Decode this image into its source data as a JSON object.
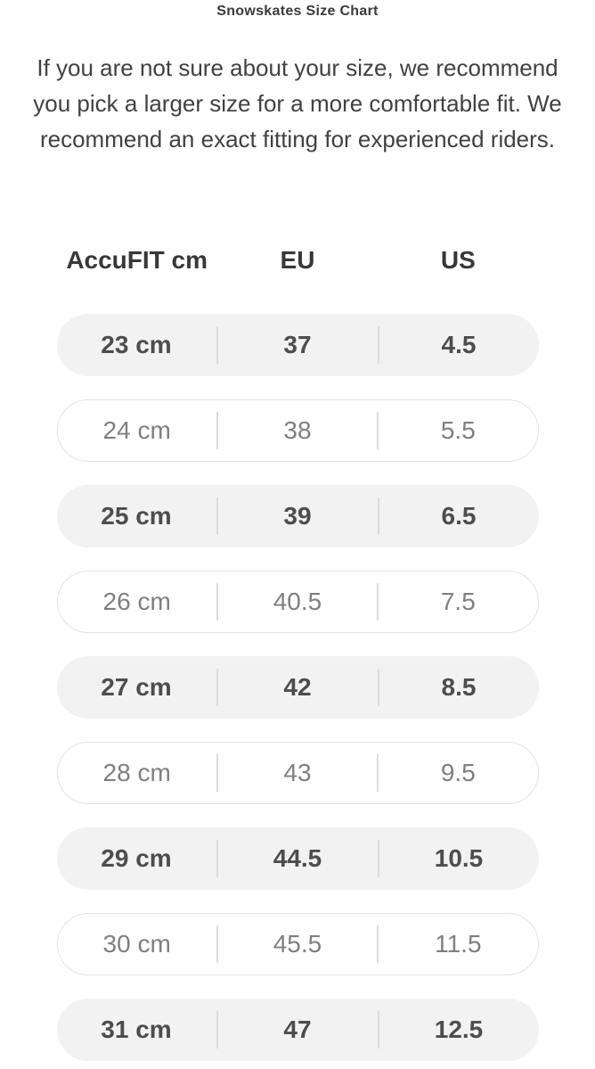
{
  "title": "Snowskates Size Chart",
  "intro": "If you are not sure about your size, we recommend\nyou pick a larger size for a more comfortable fit. We\nrecommend an exact fitting for experienced riders.",
  "size_chart": {
    "columns": [
      "AccuFIT cm",
      "EU",
      "US"
    ],
    "rows": [
      [
        "23 cm",
        "37",
        "4.5"
      ],
      [
        "24 cm",
        "38",
        "5.5"
      ],
      [
        "25 cm",
        "39",
        "6.5"
      ],
      [
        "26 cm",
        "40.5",
        "7.5"
      ],
      [
        "27 cm",
        "42",
        "8.5"
      ],
      [
        "28 cm",
        "43",
        "9.5"
      ],
      [
        "29 cm",
        "44.5",
        "10.5"
      ],
      [
        "30 cm",
        "45.5",
        "11.5"
      ],
      [
        "31 cm",
        "47",
        "12.5"
      ]
    ]
  },
  "colors": {
    "row_fill": "#f2f2f2",
    "row_border": "#e3e3e3",
    "divider": "#dcdcdc",
    "filled_row_text": "#4d4d4d",
    "outlined_row_text": "#7f7f7f",
    "heading_text": "#383838",
    "body_text": "#414141"
  }
}
